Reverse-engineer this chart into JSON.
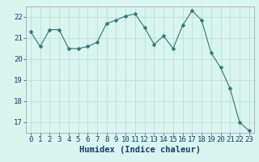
{
  "x": [
    0,
    1,
    2,
    3,
    4,
    5,
    6,
    7,
    8,
    9,
    10,
    11,
    12,
    13,
    14,
    15,
    16,
    17,
    18,
    19,
    20,
    21,
    22,
    23
  ],
  "y": [
    21.3,
    20.6,
    21.4,
    21.4,
    20.5,
    20.5,
    20.6,
    20.8,
    21.7,
    21.85,
    22.05,
    22.15,
    21.5,
    20.7,
    21.1,
    20.5,
    21.6,
    22.3,
    21.85,
    20.3,
    19.6,
    18.6,
    17.0,
    16.6
  ],
  "line_color": "#2d7a6e",
  "marker": "D",
  "marker_size": 2.5,
  "bg_color": "#d8f5f0",
  "grid_color": "#c0ddd8",
  "xlabel": "Humidex (Indice chaleur)",
  "xlabel_fontsize": 7.5,
  "xlabel_color": "#1a3a6a",
  "tick_fontsize": 6.5,
  "tick_color": "#1a3a6a",
  "ylim": [
    16.5,
    22.5
  ],
  "yticks": [
    17,
    18,
    19,
    20,
    21,
    22
  ],
  "xlim": [
    -0.5,
    23.5
  ],
  "xticks": [
    0,
    1,
    2,
    3,
    4,
    5,
    6,
    7,
    8,
    9,
    10,
    11,
    12,
    13,
    14,
    15,
    16,
    17,
    18,
    19,
    20,
    21,
    22,
    23
  ]
}
